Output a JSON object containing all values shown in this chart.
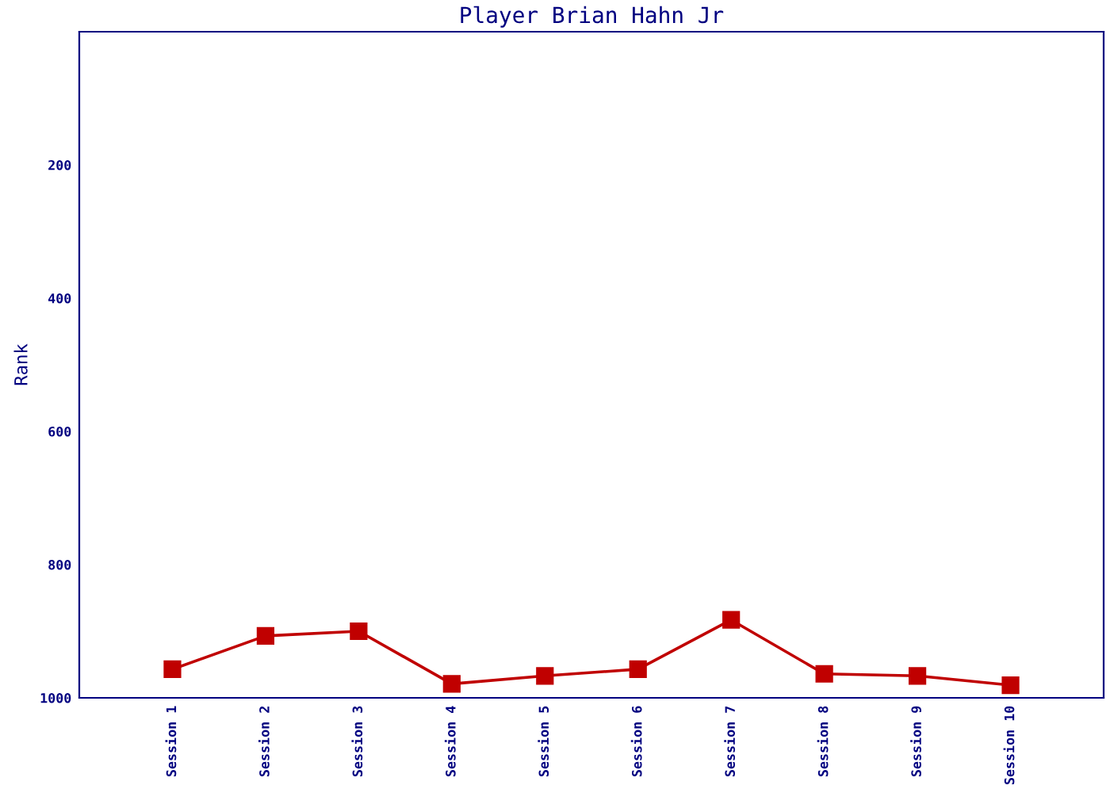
{
  "chart_data": {
    "type": "line",
    "title": "Player Brian Hahn Jr",
    "ylabel": "Rank",
    "categories": [
      "Session 1",
      "Session 2",
      "Session 3",
      "Session 4",
      "Session 5",
      "Session 6",
      "Session 7",
      "Session 8",
      "Session 9",
      "Session 10"
    ],
    "series": [
      {
        "color": "#c00000",
        "values": [
          957,
          907,
          900,
          979,
          967,
          957,
          883,
          964,
          967,
          981
        ]
      }
    ],
    "ylim": [
      1000,
      0
    ],
    "yticks": [
      200,
      400,
      600,
      800,
      1000
    ],
    "marker": "square",
    "line_style": "solid",
    "grid": false,
    "legend": false
  }
}
